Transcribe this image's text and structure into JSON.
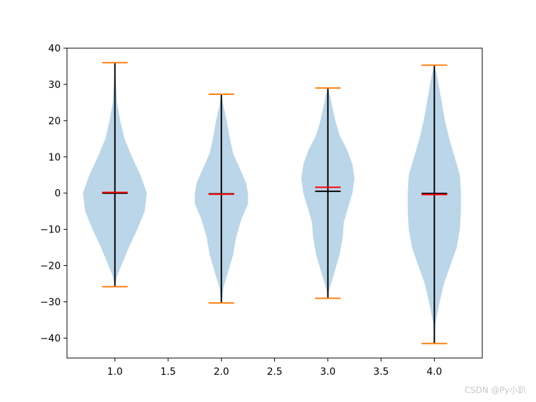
{
  "chart_data": {
    "type": "violin",
    "title": "",
    "xlabel": "",
    "ylabel": "",
    "xlim": [
      0.55,
      4.45
    ],
    "ylim": [
      -45.5,
      40
    ],
    "xticks": [
      1.0,
      1.5,
      2.0,
      2.5,
      3.0,
      3.5,
      4.0
    ],
    "xtick_labels": [
      "1.0",
      "1.5",
      "2.0",
      "2.5",
      "3.0",
      "3.5",
      "4.0"
    ],
    "yticks": [
      -40,
      -30,
      -20,
      -10,
      0,
      10,
      20,
      30,
      40
    ],
    "ytick_labels": [
      "−40",
      "−30",
      "−20",
      "−10",
      "0",
      "10",
      "20",
      "30",
      "40"
    ],
    "grid": false,
    "colors": {
      "body": "#1f77b4",
      "extrema": "#ff7f0e",
      "mean": "#ff0000",
      "median": "#000000",
      "bar": "#000000"
    },
    "series": [
      {
        "position": 1,
        "min": -25.8,
        "max": 36.0,
        "mean": 0.2,
        "median": 0.0,
        "profile": [
          [
            -25.8,
            0.0
          ],
          [
            -23,
            0.02
          ],
          [
            -20,
            0.06
          ],
          [
            -15,
            0.13
          ],
          [
            -10,
            0.21
          ],
          [
            -5,
            0.28
          ],
          [
            0,
            0.3
          ],
          [
            5,
            0.24
          ],
          [
            10,
            0.16
          ],
          [
            15,
            0.09
          ],
          [
            20,
            0.05
          ],
          [
            25,
            0.02
          ],
          [
            30,
            0.01
          ],
          [
            36.0,
            0.0
          ]
        ]
      },
      {
        "position": 2,
        "min": -30.3,
        "max": 27.3,
        "mean": -0.3,
        "median": -0.2,
        "profile": [
          [
            -30.3,
            0.0
          ],
          [
            -26,
            0.02
          ],
          [
            -22,
            0.06
          ],
          [
            -17,
            0.11
          ],
          [
            -12,
            0.14
          ],
          [
            -7,
            0.19
          ],
          [
            -3,
            0.25
          ],
          [
            0,
            0.25
          ],
          [
            3,
            0.23
          ],
          [
            7,
            0.17
          ],
          [
            11,
            0.11
          ],
          [
            15,
            0.08
          ],
          [
            20,
            0.05
          ],
          [
            24,
            0.02
          ],
          [
            27.3,
            0.0
          ]
        ]
      },
      {
        "position": 3,
        "min": -29.0,
        "max": 29.0,
        "mean": 1.6,
        "median": 0.5,
        "profile": [
          [
            -29.0,
            0.0
          ],
          [
            -27,
            0.01
          ],
          [
            -22,
            0.06
          ],
          [
            -17,
            0.11
          ],
          [
            -12,
            0.14
          ],
          [
            -8,
            0.15
          ],
          [
            -4,
            0.19
          ],
          [
            0,
            0.23
          ],
          [
            4,
            0.25
          ],
          [
            8,
            0.23
          ],
          [
            12,
            0.18
          ],
          [
            16,
            0.11
          ],
          [
            20,
            0.07
          ],
          [
            24,
            0.04
          ],
          [
            27,
            0.02
          ],
          [
            29.0,
            0.0
          ]
        ]
      },
      {
        "position": 4,
        "min": -41.5,
        "max": 35.3,
        "mean": -0.4,
        "median": -0.1,
        "profile": [
          [
            -41.5,
            0.0
          ],
          [
            -36,
            0.01
          ],
          [
            -30,
            0.05
          ],
          [
            -25,
            0.09
          ],
          [
            -20,
            0.15
          ],
          [
            -15,
            0.21
          ],
          [
            -10,
            0.24
          ],
          [
            -5,
            0.25
          ],
          [
            0,
            0.25
          ],
          [
            5,
            0.24
          ],
          [
            10,
            0.19
          ],
          [
            15,
            0.14
          ],
          [
            20,
            0.1
          ],
          [
            25,
            0.07
          ],
          [
            30,
            0.04
          ],
          [
            33,
            0.02
          ],
          [
            35.3,
            0.0
          ]
        ]
      }
    ]
  },
  "watermark": "CSDN @Py小趴"
}
